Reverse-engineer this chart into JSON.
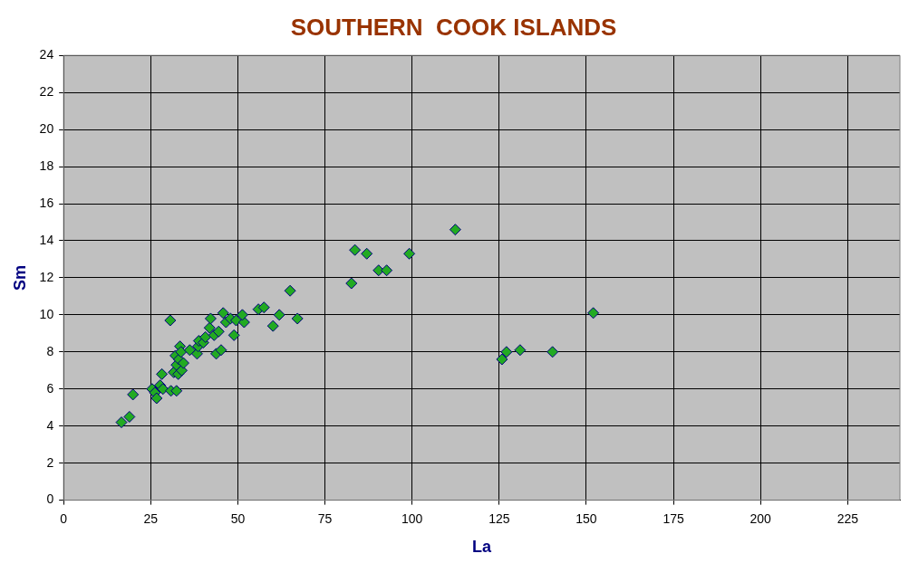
{
  "chart_data": {
    "type": "scatter",
    "title": "SOUTHERN  COOK ISLANDS",
    "xlabel": "La",
    "ylabel": "Sm",
    "x": [
      16.6,
      18.9,
      19.9,
      25.4,
      26.2,
      26.7,
      27.7,
      28.5,
      28.2,
      30.6,
      30.8,
      32.4,
      31.6,
      32.1,
      32.4,
      33.1,
      32.9,
      33.4,
      33.9,
      34.4,
      33.7,
      36.2,
      38.3,
      38.6,
      38.8,
      40.1,
      40.7,
      41.9,
      42.2,
      43.2,
      43.8,
      45.2,
      44.5,
      45.8,
      46.6,
      47.9,
      48.9,
      49.5,
      51.8,
      51.3,
      55.9,
      57.5,
      60.1,
      61.9,
      65.0,
      67.1,
      82.6,
      83.6,
      87.0,
      90.4,
      92.7,
      99.2,
      112.4,
      125.8,
      127.1,
      131.0,
      140.3,
      152.0
    ],
    "series": [
      {
        "color": "#22aa22",
        "values": [
          4.2,
          4.5,
          5.7,
          6.0,
          5.8,
          5.5,
          6.2,
          6.0,
          6.8,
          9.7,
          5.9,
          5.9,
          6.9,
          7.8,
          7.3,
          7.6,
          6.8,
          8.3,
          7.0,
          7.4,
          8.0,
          8.1,
          7.9,
          8.3,
          8.6,
          8.5,
          8.8,
          9.3,
          9.8,
          8.9,
          7.9,
          8.1,
          9.1,
          10.1,
          9.6,
          9.8,
          8.9,
          9.7,
          9.6,
          10.0,
          10.3,
          10.4,
          9.4,
          10.0,
          11.3,
          9.8,
          11.7,
          13.5,
          13.3,
          12.4,
          12.4,
          13.3,
          14.6,
          7.6,
          8.0,
          8.1,
          8.0,
          10.1
        ]
      }
    ],
    "xlim": [
      0,
      240
    ],
    "xticks": [
      0,
      25,
      50,
      75,
      100,
      125,
      150,
      175,
      200,
      225
    ],
    "ylim": [
      0,
      24
    ],
    "yticks": [
      0,
      2,
      4,
      6,
      8,
      10,
      12,
      14,
      16,
      18,
      20,
      22,
      24
    ],
    "grid": true,
    "legend": false,
    "marker": "diamond"
  }
}
